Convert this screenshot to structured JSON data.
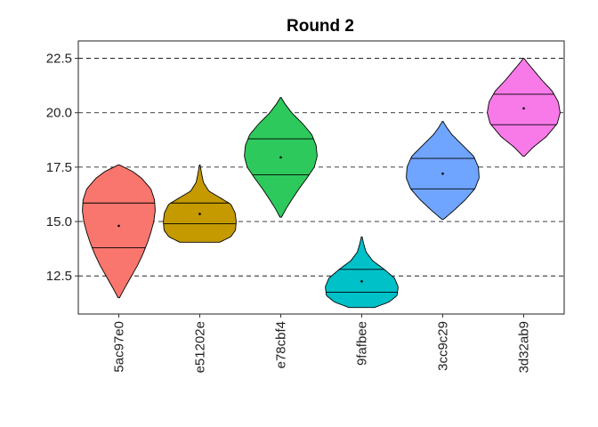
{
  "chart_data": {
    "type": "violin",
    "title": "Round 2",
    "xlabel": "",
    "ylabel": "",
    "ylim": [
      10.75,
      23.3
    ],
    "yticks": [
      12.5,
      15.0,
      17.5,
      20.0,
      22.5
    ],
    "ytick_labels": [
      "12.5",
      "15.0",
      "17.5",
      "20.0",
      "22.5"
    ],
    "grid": "horizontal dashed at y ticks",
    "categories": [
      "5ac97e0",
      "e51202e",
      "e78cbf4",
      "9fafbee",
      "3cc9c29",
      "3d32ab9"
    ],
    "series": [
      {
        "category": "5ac97e0",
        "color": "#F8766D",
        "min": 11.5,
        "max": 17.6,
        "q1": 13.8,
        "q3": 15.85,
        "mean": 14.8,
        "profile": [
          [
            11.5,
            0.02
          ],
          [
            12.0,
            0.18
          ],
          [
            12.5,
            0.35
          ],
          [
            13.0,
            0.52
          ],
          [
            13.5,
            0.66
          ],
          [
            14.0,
            0.78
          ],
          [
            14.5,
            0.88
          ],
          [
            15.0,
            0.96
          ],
          [
            15.5,
            1.0
          ],
          [
            16.0,
            0.98
          ],
          [
            16.5,
            0.88
          ],
          [
            17.0,
            0.62
          ],
          [
            17.3,
            0.38
          ],
          [
            17.6,
            0.02
          ]
        ]
      },
      {
        "category": "e51202e",
        "color": "#C49A00",
        "min": 14.05,
        "max": 17.6,
        "q1": 14.9,
        "q3": 15.85,
        "mean": 15.35,
        "profile": [
          [
            14.05,
            0.55
          ],
          [
            14.3,
            0.85
          ],
          [
            14.6,
            0.98
          ],
          [
            15.0,
            1.0
          ],
          [
            15.4,
            0.97
          ],
          [
            15.8,
            0.85
          ],
          [
            16.1,
            0.55
          ],
          [
            16.4,
            0.25
          ],
          [
            16.8,
            0.1
          ],
          [
            17.2,
            0.05
          ],
          [
            17.6,
            0.01
          ]
        ]
      },
      {
        "category": "e78cbf4",
        "color": "#2EC95C",
        "min": 15.2,
        "max": 20.7,
        "q1": 17.15,
        "q3": 18.8,
        "mean": 17.95,
        "profile": [
          [
            15.2,
            0.02
          ],
          [
            15.6,
            0.15
          ],
          [
            16.0,
            0.3
          ],
          [
            16.5,
            0.5
          ],
          [
            17.0,
            0.72
          ],
          [
            17.5,
            0.92
          ],
          [
            18.0,
            1.0
          ],
          [
            18.5,
            0.97
          ],
          [
            19.0,
            0.85
          ],
          [
            19.5,
            0.6
          ],
          [
            20.0,
            0.3
          ],
          [
            20.4,
            0.12
          ],
          [
            20.7,
            0.01
          ]
        ]
      },
      {
        "category": "9fafbee",
        "color": "#00C0C8",
        "min": 11.05,
        "max": 14.3,
        "q1": 11.75,
        "q3": 12.8,
        "mean": 12.25,
        "profile": [
          [
            11.05,
            0.35
          ],
          [
            11.3,
            0.75
          ],
          [
            11.6,
            0.97
          ],
          [
            12.0,
            1.0
          ],
          [
            12.4,
            0.9
          ],
          [
            12.8,
            0.62
          ],
          [
            13.2,
            0.3
          ],
          [
            13.6,
            0.12
          ],
          [
            14.0,
            0.05
          ],
          [
            14.3,
            0.01
          ]
        ]
      },
      {
        "category": "3cc9c29",
        "color": "#6FA4FF",
        "min": 15.1,
        "max": 19.6,
        "q1": 16.5,
        "q3": 17.9,
        "mean": 17.2,
        "profile": [
          [
            15.1,
            0.02
          ],
          [
            15.5,
            0.3
          ],
          [
            16.0,
            0.62
          ],
          [
            16.5,
            0.88
          ],
          [
            17.0,
            1.0
          ],
          [
            17.5,
            0.98
          ],
          [
            18.0,
            0.85
          ],
          [
            18.5,
            0.55
          ],
          [
            19.0,
            0.25
          ],
          [
            19.3,
            0.12
          ],
          [
            19.6,
            0.01
          ]
        ]
      },
      {
        "category": "3d32ab9",
        "color": "#F87AE8",
        "min": 18.0,
        "max": 22.5,
        "q1": 19.45,
        "q3": 20.85,
        "mean": 20.2,
        "profile": [
          [
            18.0,
            0.02
          ],
          [
            18.4,
            0.25
          ],
          [
            18.9,
            0.62
          ],
          [
            19.5,
            0.92
          ],
          [
            20.0,
            1.0
          ],
          [
            20.5,
            0.95
          ],
          [
            21.0,
            0.78
          ],
          [
            21.5,
            0.5
          ],
          [
            22.0,
            0.25
          ],
          [
            22.3,
            0.1
          ],
          [
            22.5,
            0.01
          ]
        ]
      }
    ]
  }
}
